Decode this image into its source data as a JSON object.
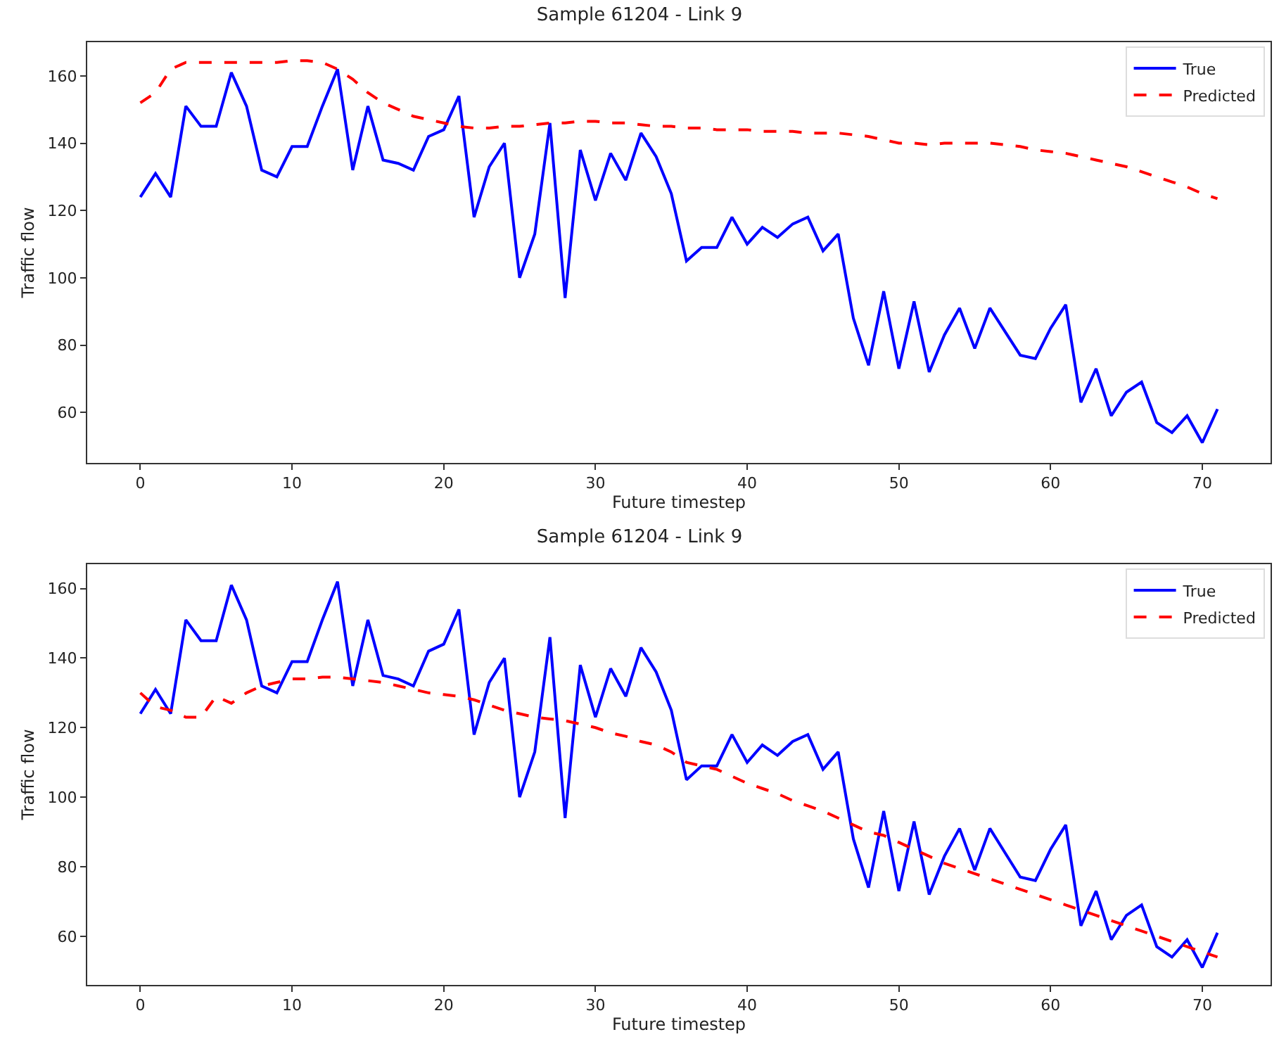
{
  "chart_data": [
    {
      "type": "line",
      "title": "Sample 61204 - Link 9",
      "xlabel": "Future timestep",
      "ylabel": "Traffic flow",
      "legend": "top right",
      "x": [
        0,
        1,
        2,
        3,
        4,
        5,
        6,
        7,
        8,
        9,
        10,
        11,
        12,
        13,
        14,
        15,
        16,
        17,
        18,
        19,
        20,
        21,
        22,
        23,
        24,
        25,
        26,
        27,
        28,
        29,
        30,
        31,
        32,
        33,
        34,
        35,
        36,
        37,
        38,
        39,
        40,
        41,
        42,
        43,
        44,
        45,
        46,
        47,
        48,
        49,
        50,
        51,
        52,
        53,
        54,
        55,
        56,
        57,
        58,
        59,
        60,
        61,
        62,
        63,
        64,
        65,
        66,
        67,
        68,
        69,
        70,
        71
      ],
      "xlim": [
        -3.5,
        74.5
      ],
      "xticks": [
        0,
        10,
        20,
        30,
        40,
        50,
        60,
        70
      ],
      "ylim": [
        45,
        170
      ],
      "yticks": [
        60,
        80,
        100,
        120,
        140,
        160
      ],
      "series": [
        {
          "name": "True",
          "color": "#0000ff",
          "line_style": "solid",
          "values": [
            124,
            131,
            124,
            151,
            145,
            145,
            161,
            151,
            132,
            130,
            139,
            139,
            151,
            162,
            132,
            151,
            135,
            134,
            132,
            142,
            144,
            154,
            118,
            133,
            140,
            100,
            113,
            146,
            94,
            138,
            123,
            137,
            129,
            143,
            136,
            125,
            105,
            109,
            109,
            118,
            110,
            115,
            112,
            116,
            118,
            108,
            113,
            88,
            74,
            96,
            73,
            93,
            72,
            83,
            91,
            79,
            91,
            84,
            77,
            76,
            85,
            92,
            63,
            73,
            59,
            66,
            69,
            57,
            54,
            59,
            51,
            61
          ]
        },
        {
          "name": "Predicted",
          "color": "#ff0000",
          "line_style": "dashed",
          "values": [
            152,
            155,
            162,
            164,
            164,
            164,
            164,
            164,
            164,
            164,
            164.5,
            164.5,
            164,
            162,
            159,
            155,
            152,
            150,
            148,
            147,
            146,
            145,
            144.5,
            144.5,
            145,
            145,
            145.5,
            146,
            146,
            146.5,
            146.5,
            146,
            146,
            145.5,
            145,
            145,
            144.5,
            144.5,
            144,
            144,
            144,
            143.5,
            143.5,
            143.5,
            143,
            143,
            143,
            142.5,
            142,
            141,
            140,
            140,
            139.5,
            140,
            140,
            140,
            140,
            139.5,
            139,
            138,
            137.5,
            137,
            136,
            135,
            134,
            133,
            131.5,
            130,
            128.5,
            127,
            125,
            123.5
          ]
        }
      ]
    },
    {
      "type": "line",
      "title": "Sample 61204 - Link 9",
      "xlabel": "Future timestep",
      "ylabel": "Traffic flow",
      "legend": "top right",
      "x": [
        0,
        1,
        2,
        3,
        4,
        5,
        6,
        7,
        8,
        9,
        10,
        11,
        12,
        13,
        14,
        15,
        16,
        17,
        18,
        19,
        20,
        21,
        22,
        23,
        24,
        25,
        26,
        27,
        28,
        29,
        30,
        31,
        32,
        33,
        34,
        35,
        36,
        37,
        38,
        39,
        40,
        41,
        42,
        43,
        44,
        45,
        46,
        47,
        48,
        49,
        50,
        51,
        52,
        53,
        54,
        55,
        56,
        57,
        58,
        59,
        60,
        61,
        62,
        63,
        64,
        65,
        66,
        67,
        68,
        69,
        70,
        71
      ],
      "xlim": [
        -3.5,
        74.5
      ],
      "xticks": [
        0,
        10,
        20,
        30,
        40,
        50,
        60,
        70
      ],
      "ylim": [
        46,
        167
      ],
      "yticks": [
        60,
        80,
        100,
        120,
        140,
        160
      ],
      "series": [
        {
          "name": "True",
          "color": "#0000ff",
          "line_style": "solid",
          "values": [
            124,
            131,
            124,
            151,
            145,
            145,
            161,
            151,
            132,
            130,
            139,
            139,
            151,
            162,
            132,
            151,
            135,
            134,
            132,
            142,
            144,
            154,
            118,
            133,
            140,
            100,
            113,
            146,
            94,
            138,
            123,
            137,
            129,
            143,
            136,
            125,
            105,
            109,
            109,
            118,
            110,
            115,
            112,
            116,
            118,
            108,
            113,
            88,
            74,
            96,
            73,
            93,
            72,
            83,
            91,
            79,
            91,
            84,
            77,
            76,
            85,
            92,
            63,
            73,
            59,
            66,
            69,
            57,
            54,
            59,
            51,
            61
          ]
        },
        {
          "name": "Predicted",
          "color": "#ff0000",
          "line_style": "dashed",
          "values": [
            130,
            126,
            125,
            123,
            123,
            129,
            127,
            130,
            132,
            133,
            134,
            134,
            134.5,
            134.5,
            134,
            133.5,
            133,
            132,
            131,
            130,
            129.5,
            129,
            128,
            126.5,
            125,
            124,
            123,
            122.5,
            122,
            121,
            120,
            118.5,
            117.5,
            116,
            115,
            113,
            110,
            109,
            108,
            106,
            104,
            102.5,
            101,
            99,
            97.5,
            96,
            94,
            92,
            90,
            89,
            87,
            85,
            83,
            81,
            79.5,
            78,
            76.5,
            75,
            73.5,
            72,
            70.5,
            69,
            67.5,
            66,
            64.5,
            63,
            61.5,
            60,
            58.5,
            57,
            55.5,
            54
          ]
        }
      ]
    }
  ]
}
